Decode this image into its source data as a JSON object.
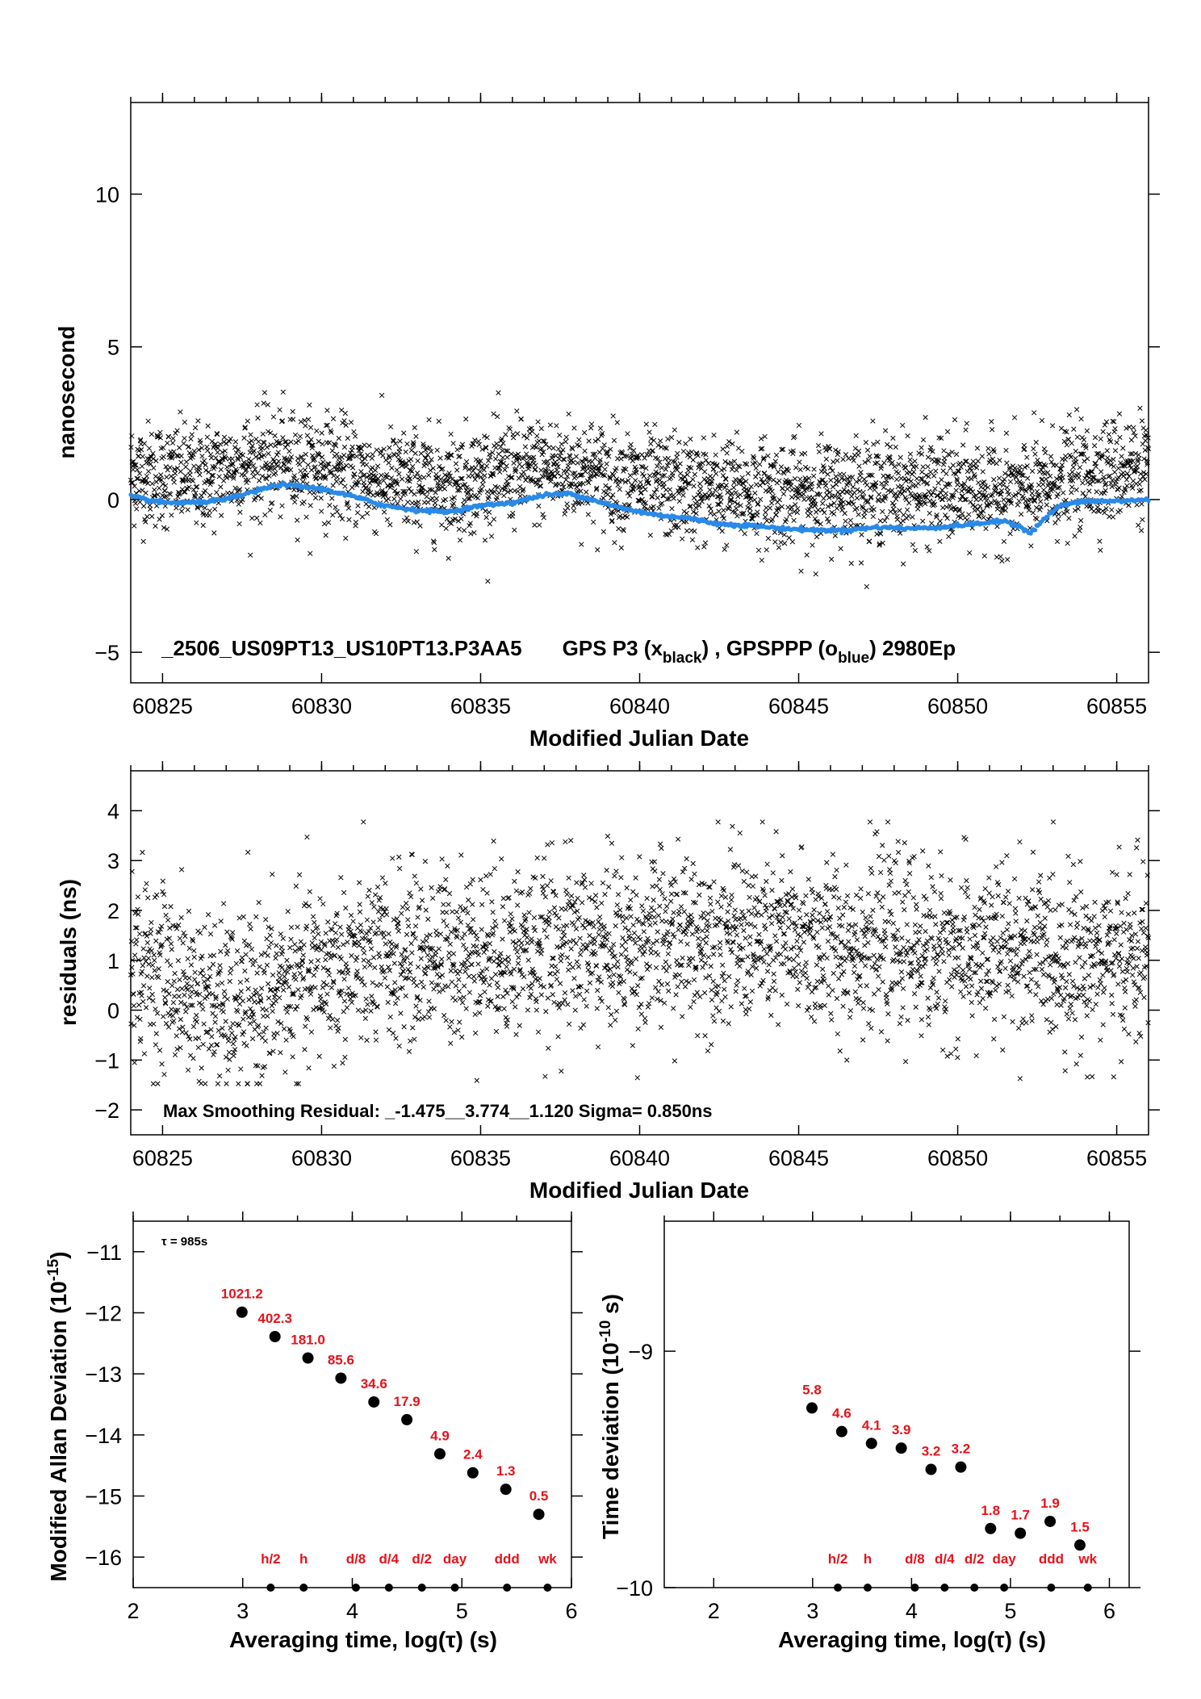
{
  "chart_data": [
    {
      "id": "time-series",
      "type": "scatter",
      "xlabel": "Modified Julian Date",
      "ylabel": "nanosecond",
      "xlim": [
        60824,
        60856
      ],
      "ylim": [
        -6,
        13
      ],
      "xticks": [
        60825,
        60830,
        60835,
        60840,
        60845,
        60850,
        60855
      ],
      "yticks": [
        -5,
        0,
        5,
        10
      ],
      "grid": false,
      "caption": {
        "id_text": "_2506_US09PT13_US10PT13.P3AA5",
        "part1": "GPS P3 (x",
        "sub1": "black",
        "part2": ") ,  GPSPPP (o",
        "sub2": "blue",
        "part3": ")  2980Ep"
      },
      "series": [
        {
          "name": "GPS P3",
          "marker": "x",
          "color": "#000000",
          "count": 2980,
          "noise_sigma": 0.85,
          "trend": [
            [
              60824,
              0.9
            ],
            [
              60826,
              0.7
            ],
            [
              60828,
              1.2
            ],
            [
              60830,
              1.1
            ],
            [
              60832,
              0.6
            ],
            [
              60834,
              0.5
            ],
            [
              60836,
              0.9
            ],
            [
              60838,
              1.0
            ],
            [
              60840,
              0.5
            ],
            [
              60842,
              0.3
            ],
            [
              60845,
              0.2
            ],
            [
              60848,
              0.4
            ],
            [
              60850,
              0.3
            ],
            [
              60852,
              0.2
            ],
            [
              60854,
              0.8
            ],
            [
              60856,
              1.2
            ]
          ]
        },
        {
          "name": "GPSPPP",
          "marker": "o",
          "color": "#2a8ae8",
          "points": [
            [
              60824,
              0.1
            ],
            [
              60825,
              -0.1
            ],
            [
              60826,
              -0.1
            ],
            [
              60827,
              0.0
            ],
            [
              60828,
              0.3
            ],
            [
              60828.7,
              0.5
            ],
            [
              60830,
              0.35
            ],
            [
              60831,
              0.1
            ],
            [
              60832,
              -0.2
            ],
            [
              60833,
              -0.35
            ],
            [
              60834,
              -0.4
            ],
            [
              60835,
              -0.2
            ],
            [
              60836,
              -0.1
            ],
            [
              60837,
              0.15
            ],
            [
              60837.8,
              0.2
            ],
            [
              60838.5,
              0.0
            ],
            [
              60839.5,
              -0.3
            ],
            [
              60840.5,
              -0.5
            ],
            [
              60841.5,
              -0.6
            ],
            [
              60842.5,
              -0.8
            ],
            [
              60843.5,
              -0.85
            ],
            [
              60844.5,
              -0.95
            ],
            [
              60845.5,
              -1.0
            ],
            [
              60846.5,
              -1.0
            ],
            [
              60847.5,
              -0.9
            ],
            [
              60848.5,
              -0.95
            ],
            [
              60849.5,
              -0.9
            ],
            [
              60850.5,
              -0.8
            ],
            [
              60851.5,
              -0.7
            ],
            [
              60852,
              -0.9
            ],
            [
              60852.3,
              -1.1
            ],
            [
              60852.6,
              -0.75
            ],
            [
              60853.2,
              -0.2
            ],
            [
              60854,
              -0.05
            ],
            [
              60855,
              -0.05
            ],
            [
              60856,
              0.0
            ]
          ]
        }
      ]
    },
    {
      "id": "residuals",
      "type": "scatter",
      "xlabel": "Modified Julian Date",
      "ylabel": "residuals (ns)",
      "xlim": [
        60824,
        60856
      ],
      "ylim": [
        -2.5,
        4.8
      ],
      "xticks": [
        60825,
        60830,
        60835,
        60840,
        60845,
        60850,
        60855
      ],
      "yticks": [
        -2,
        -1,
        0,
        1,
        2,
        3,
        4
      ],
      "grid": false,
      "caption": "Max Smoothing Residual: _-1.475__3.774__1.120  Sigma= 0.850ns",
      "series": [
        {
          "marker": "x",
          "color": "#000000",
          "count": 2980,
          "min": -1.475,
          "max": 3.774,
          "noise_sigma": 0.85,
          "trend": [
            [
              60824,
              1.0
            ],
            [
              60825,
              0.8
            ],
            [
              60826,
              0.3
            ],
            [
              60827,
              0.0
            ],
            [
              60828,
              0.2
            ],
            [
              60829,
              0.5
            ],
            [
              60830,
              0.8
            ],
            [
              60832,
              1.0
            ],
            [
              60834,
              1.2
            ],
            [
              60836,
              1.2
            ],
            [
              60838,
              1.3
            ],
            [
              60840,
              1.3
            ],
            [
              60842,
              1.5
            ],
            [
              60844,
              1.4
            ],
            [
              60846,
              1.3
            ],
            [
              60848,
              1.4
            ],
            [
              60850,
              1.1
            ],
            [
              60852,
              1.2
            ],
            [
              60854,
              1.0
            ],
            [
              60856,
              1.1
            ]
          ]
        }
      ]
    },
    {
      "id": "mdev",
      "type": "scatter",
      "xlabel": "Averaging time, log(τ) (s)",
      "ylabel_main": "Modified Allan Deviation (10",
      "ylabel_sup": "-15",
      "ylabel_end": ")",
      "xlim": [
        2,
        6
      ],
      "ylim": [
        -16.5,
        -10.5
      ],
      "xticks": [
        2,
        3,
        4,
        5,
        6
      ],
      "yticks": [
        -16,
        -15,
        -14,
        -13,
        -12,
        -11
      ],
      "tau_note": "τ = 985s",
      "series": [
        {
          "x": [
            2.993,
            3.294,
            3.595,
            3.896,
            4.197,
            4.498,
            4.799,
            5.1,
            5.401,
            5.702
          ],
          "y": [
            -11.99,
            -12.39,
            -12.74,
            -13.07,
            -13.46,
            -13.75,
            -14.31,
            -14.62,
            -14.89,
            -15.3
          ],
          "labels": [
            "1021.2",
            "402.3",
            "181.0",
            "85.6",
            "34.6",
            "17.9",
            "4.9",
            "2.4",
            "1.3",
            "0.5"
          ]
        }
      ],
      "markers": {
        "x": [
          3.255,
          3.556,
          4.033,
          4.334,
          4.635,
          4.936,
          5.412,
          5.782
        ],
        "labels": [
          "h/2",
          "h",
          "d/8",
          "d/4",
          "d/2",
          "day",
          "ddd",
          "wk"
        ]
      }
    },
    {
      "id": "tdev",
      "type": "scatter",
      "xlabel": "Averaging time, log(τ) (s)",
      "ylabel_main": "Time deviation (10",
      "ylabel_sup": "-10",
      "ylabel_end": " s)",
      "xlim": [
        1.5,
        6.2
      ],
      "ylim": [
        -10,
        -8.45
      ],
      "xticks": [
        2,
        3,
        4,
        5,
        6
      ],
      "yticks": [
        -10,
        -9
      ],
      "series": [
        {
          "x": [
            2.993,
            3.294,
            3.595,
            3.896,
            4.197,
            4.498,
            4.799,
            5.1,
            5.401,
            5.702
          ],
          "y": [
            -9.24,
            -9.34,
            -9.39,
            -9.41,
            -9.5,
            -9.49,
            -9.75,
            -9.77,
            -9.72,
            -9.82
          ],
          "labels": [
            "5.8",
            "4.6",
            "4.1",
            "3.9",
            "3.2",
            "3.2",
            "1.8",
            "1.7",
            "1.9",
            "1.5"
          ]
        }
      ],
      "markers": {
        "x": [
          3.255,
          3.556,
          4.033,
          4.334,
          4.635,
          4.936,
          5.412,
          5.782
        ],
        "labels": [
          "h/2",
          "h",
          "d/8",
          "d/4",
          "d/2",
          "day",
          "ddd",
          "wk"
        ]
      }
    }
  ],
  "colors": {
    "red": "#e8111b",
    "blue": "#2a8ae8",
    "black": "#000000"
  }
}
